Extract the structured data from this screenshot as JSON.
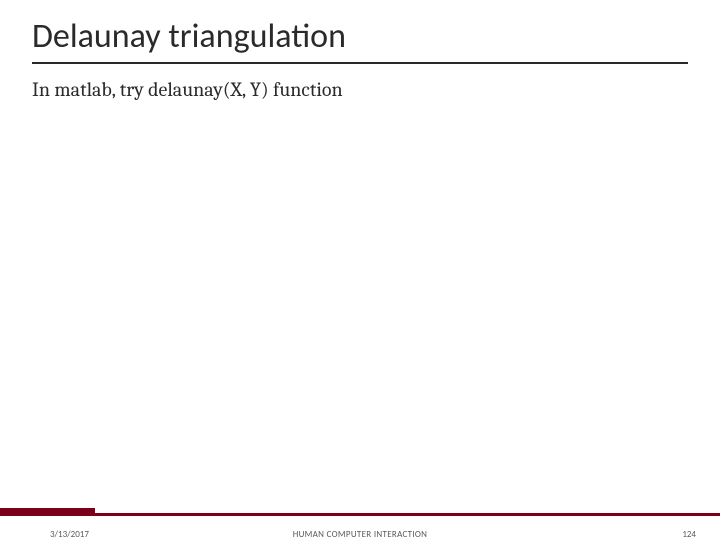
{
  "slide": {
    "title": "Delaunay triangulation",
    "body": "In matlab, try delaunay(X, Y) function",
    "footer": {
      "date": "3/13/2017",
      "center": "HUMAN COMPUTER INTERACTION",
      "page": "124"
    }
  },
  "style": {
    "background_color": "#ffffff",
    "title_color": "#2a2a2a",
    "title_fontsize": 34,
    "title_fontweight": 300,
    "underline_color": "#2a2a2a",
    "body_color": "#2a2a2a",
    "body_fontsize": 20,
    "accent_bar_color": "#7a0019",
    "footer_text_color": "#5a5a5a",
    "footer_fontsize": 9
  }
}
